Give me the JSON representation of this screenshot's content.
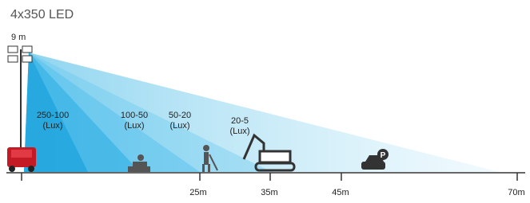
{
  "title": "4x350 LED",
  "height_label": "9 m",
  "zones": [
    {
      "range": "250-100",
      "unit": "(Lux)"
    },
    {
      "range": "100-50",
      "unit": "(Lux)"
    },
    {
      "range": "50-20",
      "unit": "(Lux)"
    },
    {
      "range": "20-5",
      "unit": "(Lux)"
    }
  ],
  "distances": [
    "25m",
    "35m",
    "45m",
    "70m"
  ]
}
